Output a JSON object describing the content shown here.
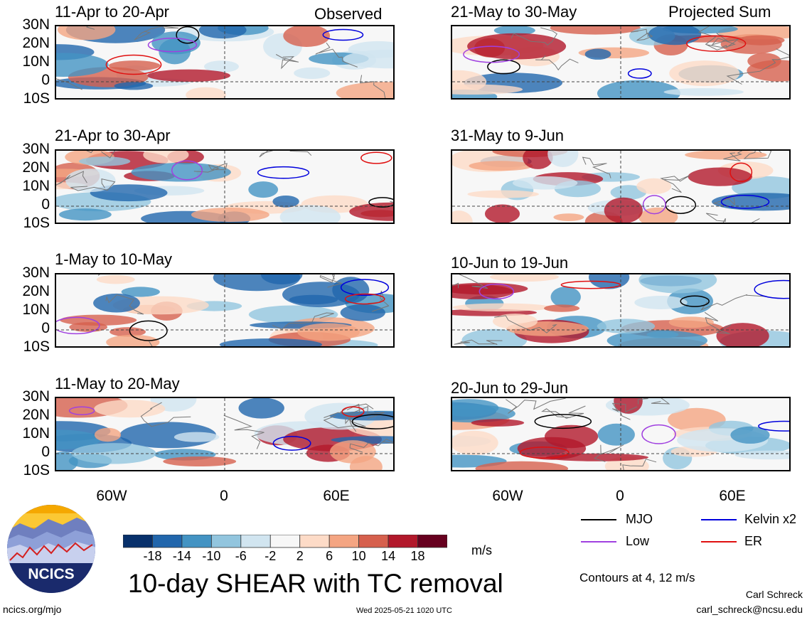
{
  "mode_labels": {
    "observed": "Observed",
    "projected": "Projected Sum"
  },
  "panels": [
    {
      "title": "11-Apr to 20-Apr"
    },
    {
      "title": "21-Apr to 30-Apr"
    },
    {
      "title": "1-May to 10-May"
    },
    {
      "title": "11-May to 20-May"
    },
    {
      "title": "21-May to 30-May"
    },
    {
      "title": "31-May to 9-Jun"
    },
    {
      "title": "10-Jun to 19-Jun"
    },
    {
      "title": "20-Jun to 29-Jun"
    }
  ],
  "lat_labels": [
    "30N",
    "20N",
    "10N",
    "0",
    "10S"
  ],
  "lon_labels": [
    "60W",
    "0",
    "60E"
  ],
  "colorbar": {
    "ticks": [
      "-18",
      "-14",
      "-10",
      "-6",
      "-2",
      "2",
      "6",
      "10",
      "14",
      "18"
    ],
    "colors": [
      "#08306b",
      "#2166ac",
      "#4393c3",
      "#92c5de",
      "#d1e5f0",
      "#f7f7f7",
      "#fddbc7",
      "#f4a582",
      "#d6604d",
      "#b2182b",
      "#67001f"
    ],
    "unit": "m/s"
  },
  "legend": {
    "items": [
      {
        "label": "MJO",
        "color": "#000000"
      },
      {
        "label": "Kelvin x2",
        "color": "#0000dd"
      },
      {
        "label": "Low",
        "color": "#a040e0"
      },
      {
        "label": "ER",
        "color": "#e01010"
      }
    ],
    "contours_note": "Contours at 4, 12 m/s"
  },
  "main_title": "10-day SHEAR with TC removal",
  "logo_text": "NCICS",
  "footer": {
    "url": "ncics.org/mjo",
    "timestamp": "Wed 2025-05-21 1020 UTC",
    "author": "Carl Schreck",
    "email": "carl_schreck@ncsu.edu"
  }
}
